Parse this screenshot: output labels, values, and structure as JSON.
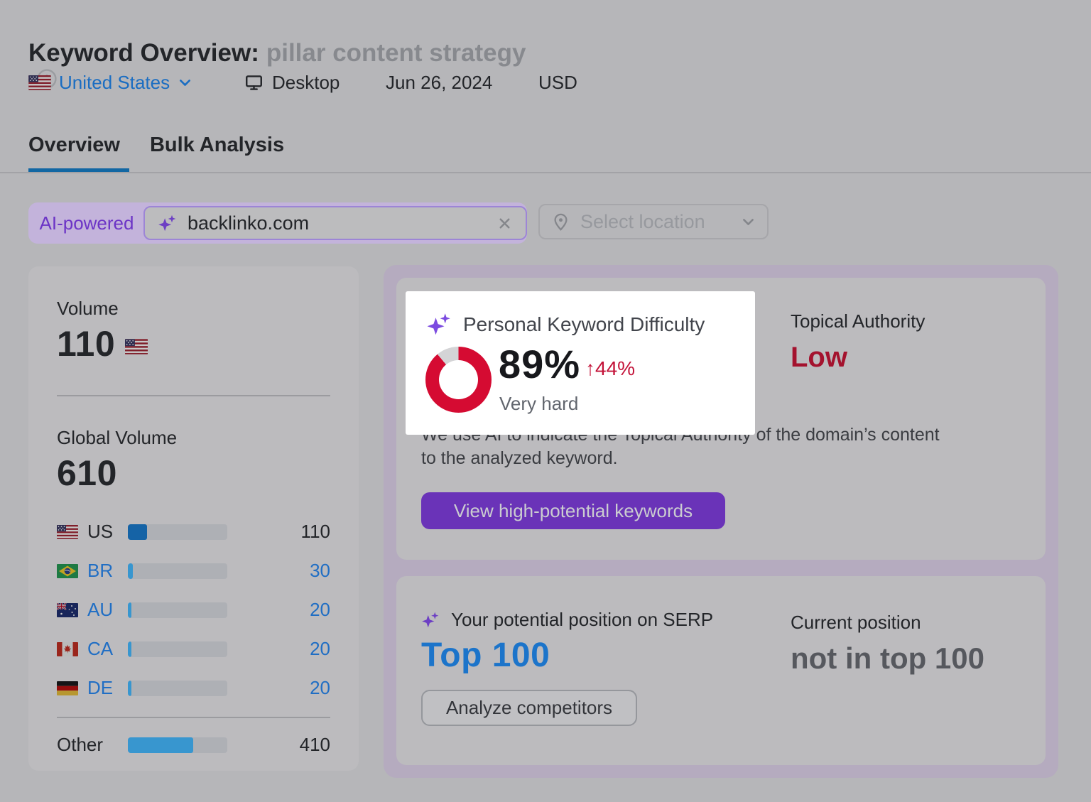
{
  "colors": {
    "page_bg": "#b6b6b9",
    "card_bg": "#bcbbbe",
    "wrapper_bg": "#b5abbf",
    "card_divider": "#9b9b9f",
    "divider": "#a2a2a6",
    "text_dark": "#232529",
    "text_mid": "#3a3c41",
    "keyword_gray": "#87898e",
    "icon_gray": "#9a9ca0",
    "link_blue": "#1a6dc2",
    "value_blue": "#206ec4",
    "tab_underline": "#1267a3",
    "pill_bg": "#c3b3db",
    "pill_text": "#6c34c6",
    "input_bg": "#bcbcbe",
    "input_border": "#9d85d6",
    "select_border": "#a6a6aa",
    "select_text": "#97999e",
    "muted_icon": "#84868b",
    "bar_track": "#aeb0b5",
    "bar_us": "#1563a6",
    "bar_blue": "#3896cf",
    "sparkle_purple": "#6d3fc4",
    "btn_purple": "#6a33b8",
    "btn_purple_text": "#cbccd0",
    "low_red": "#a4122e",
    "top100_blue": "#1c74ca",
    "gray_strong": "#56585e",
    "outline_border": "#95979c",
    "outline_bg": "#c0c0c3",
    "outline_text": "#33353a",
    "spot_bg": "#ffffff",
    "spot_title": "#42454c",
    "spot_black": "#17181c",
    "spot_red": "#c31238",
    "spot_gray": "#62666e",
    "spot_sparkle": "#7c4be0",
    "donut_red": "#d50b32",
    "donut_gray": "#d4d4d6"
  },
  "header": {
    "title_prefix": "Keyword Overview:",
    "keyword": "pillar content strategy",
    "country": "United States",
    "device": "Desktop",
    "date": "Jun 26, 2024",
    "currency": "USD"
  },
  "tabs": {
    "overview": "Overview",
    "bulk": "Bulk Analysis"
  },
  "search": {
    "badge": "AI-powered",
    "value": "backlinko.com",
    "location_placeholder": "Select location"
  },
  "volume_card": {
    "volume_label": "Volume",
    "volume": "110",
    "global_label": "Global Volume",
    "global_volume": "610",
    "countries": [
      {
        "code": "US",
        "value": "110",
        "bar_pct": 19
      },
      {
        "code": "BR",
        "value": "30",
        "bar_pct": 5
      },
      {
        "code": "AU",
        "value": "20",
        "bar_pct": 3.5
      },
      {
        "code": "CA",
        "value": "20",
        "bar_pct": 3.5
      },
      {
        "code": "DE",
        "value": "20",
        "bar_pct": 3.5
      }
    ],
    "other": {
      "label": "Other",
      "value": "410",
      "bar_pct": 66
    }
  },
  "difficulty_card": {
    "title": "Personal Keyword Difficulty",
    "percent": "89%",
    "percent_value": 89,
    "change": "↑44%",
    "level": "Very hard",
    "topical_label": "Topical Authority",
    "topical_value": "Low",
    "description_line1": "We use AI to indicate the Topical Authority of the domain’s content",
    "description_line2": "to the analyzed keyword.",
    "cta": "View high-potential keywords"
  },
  "serp_card": {
    "potential_label": "Your potential position on SERP",
    "potential_value": "Top 100",
    "current_label": "Current position",
    "current_value": "not in top 100",
    "cta": "Analyze competitors"
  }
}
